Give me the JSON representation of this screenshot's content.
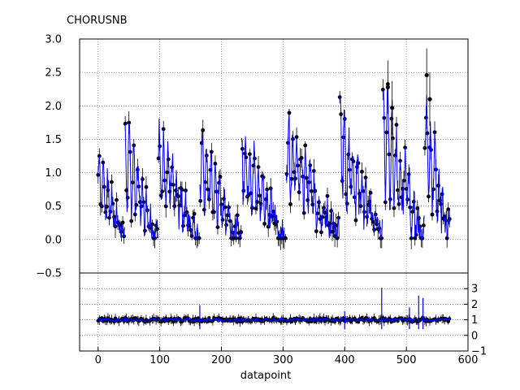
{
  "chart_data": [
    {
      "type": "scatter",
      "panel": "top",
      "title": "CHORUSNB",
      "xlabel": "",
      "ylabel": "",
      "xlim": [
        -30,
        600
      ],
      "ylim": [
        -0.5,
        3.0
      ],
      "xticks": [
        0,
        100,
        200,
        300,
        400,
        500,
        600
      ],
      "yticks": [
        "3.0",
        "2.5",
        "2.0",
        "1.5",
        "1.0",
        "0.5",
        "0.0",
        "−0.5"
      ],
      "ytick_values": [
        3.0,
        2.5,
        2.0,
        1.5,
        1.0,
        0.5,
        0.0,
        -0.5
      ],
      "grid": true,
      "series_styles": {
        "points": "#000000",
        "model_line": "#0000ff"
      },
      "cycles": [
        {
          "start": 0,
          "end": 44,
          "peak": 1.15
        },
        {
          "start": 44,
          "end": 98,
          "peak": 1.45
        },
        {
          "start": 98,
          "end": 165,
          "peak": 1.38
        },
        {
          "start": 165,
          "end": 233,
          "peak": 1.33
        },
        {
          "start": 233,
          "end": 305,
          "peak": 1.45
        },
        {
          "start": 305,
          "end": 392,
          "peak": 1.62
        },
        {
          "start": 392,
          "end": 462,
          "peak": 1.7
        },
        {
          "start": 462,
          "end": 530,
          "peak": 1.95
        },
        {
          "start": 530,
          "end": 572,
          "peak": 1.8
        }
      ],
      "outliers": [
        {
          "x": 470,
          "y": 2.28
        },
        {
          "x": 533,
          "y": 2.46
        },
        {
          "x": 477,
          "y": 1.97
        },
        {
          "x": 538,
          "y": 2.1
        }
      ]
    },
    {
      "type": "scatter",
      "panel": "bottom",
      "xlabel": "datapoint",
      "ylabel": "",
      "xlim": [
        -30,
        600
      ],
      "ylim": [
        -1,
        4
      ],
      "xticks": [
        0,
        100,
        200,
        300,
        400,
        500,
        600
      ],
      "yticks": [
        "3",
        "2",
        "1",
        "0",
        "−1"
      ],
      "ytick_values": [
        3,
        2,
        1,
        0,
        -1
      ],
      "grid": true,
      "baseline": 1.0,
      "spikes": [
        {
          "x": 165,
          "y": 1.95
        },
        {
          "x": 400,
          "y": 1.55
        },
        {
          "x": 460,
          "y": 3.05
        },
        {
          "x": 505,
          "y": 1.8
        },
        {
          "x": 520,
          "y": 2.55
        },
        {
          "x": 527,
          "y": 2.4
        }
      ]
    }
  ]
}
